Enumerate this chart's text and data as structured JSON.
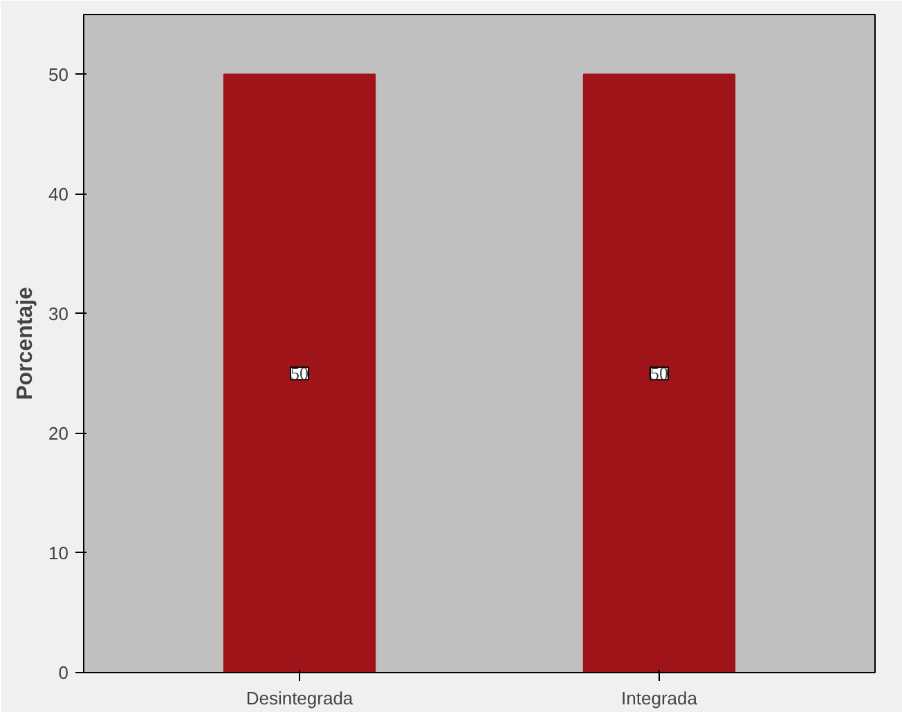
{
  "chart_data": {
    "type": "bar",
    "ylabel": "Porcentaje",
    "categories": [
      "Desintegrada",
      "Integrada"
    ],
    "values": [
      50,
      50
    ],
    "color": "#9e1418",
    "ylim": [
      0,
      55
    ],
    "yticks": [
      0,
      10,
      20,
      30,
      40,
      50
    ],
    "grid": false,
    "data_labels": true
  }
}
